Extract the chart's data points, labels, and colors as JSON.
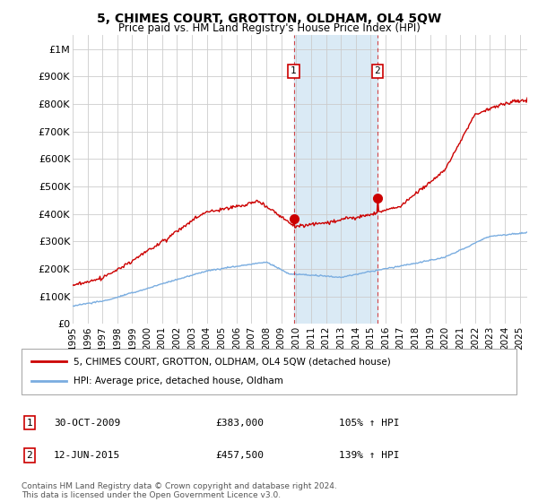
{
  "title": "5, CHIMES COURT, GROTTON, OLDHAM, OL4 5QW",
  "subtitle": "Price paid vs. HM Land Registry's House Price Index (HPI)",
  "ylim": [
    0,
    1050000
  ],
  "xlim_start": 1995.0,
  "xlim_end": 2025.5,
  "yticks": [
    0,
    100000,
    200000,
    300000,
    400000,
    500000,
    600000,
    700000,
    800000,
    900000,
    1000000
  ],
  "ytick_labels": [
    "£0",
    "£100K",
    "£200K",
    "£300K",
    "£400K",
    "£500K",
    "£600K",
    "£700K",
    "£800K",
    "£900K",
    "£1M"
  ],
  "xticks": [
    1995,
    1996,
    1997,
    1998,
    1999,
    2000,
    2001,
    2002,
    2003,
    2004,
    2005,
    2006,
    2007,
    2008,
    2009,
    2010,
    2011,
    2012,
    2013,
    2014,
    2015,
    2016,
    2017,
    2018,
    2019,
    2020,
    2021,
    2022,
    2023,
    2024,
    2025
  ],
  "sale1_x": 2009.83,
  "sale1_y": 383000,
  "sale1_label": "1",
  "sale1_date": "30-OCT-2009",
  "sale1_price": "£383,000",
  "sale1_hpi": "105% ↑ HPI",
  "sale2_x": 2015.45,
  "sale2_y": 457500,
  "sale2_label": "2",
  "sale2_date": "12-JUN-2015",
  "sale2_price": "£457,500",
  "sale2_hpi": "139% ↑ HPI",
  "property_color": "#cc0000",
  "hpi_color": "#7aade0",
  "shade_color": "#daeaf5",
  "footnote": "Contains HM Land Registry data © Crown copyright and database right 2024.\nThis data is licensed under the Open Government Licence v3.0.",
  "legend_property": "5, CHIMES COURT, GROTTON, OLDHAM, OL4 5QW (detached house)",
  "legend_hpi": "HPI: Average price, detached house, Oldham"
}
